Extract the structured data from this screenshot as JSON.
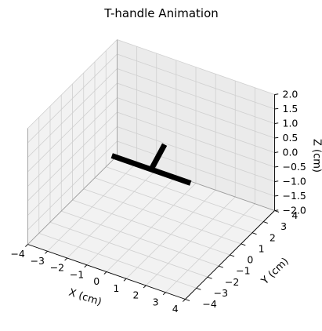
{
  "chart_data": {
    "type": "3d-line",
    "title": "T-handle Animation",
    "xlabel": "X (cm)",
    "ylabel": "Y (cm)",
    "zlabel": "Z (cm)",
    "xlim": [
      -4,
      4
    ],
    "ylim": [
      -4,
      4
    ],
    "zlim": [
      -2,
      2
    ],
    "x_ticks": [
      "−4",
      "−3",
      "−2",
      "−1",
      "0",
      "1",
      "2",
      "3",
      "4"
    ],
    "y_ticks": [
      "−4",
      "−3",
      "−2",
      "−1",
      "0",
      "1",
      "2",
      "3",
      "4"
    ],
    "z_ticks": [
      "−2.0",
      "−1.5",
      "−1.0",
      "−0.5",
      "0.0",
      "0.5",
      "1.0",
      "1.5",
      "2.0"
    ],
    "grid": true,
    "segments": [
      {
        "name": "handle bar",
        "from": [
          -2,
          0,
          0
        ],
        "to": [
          2,
          0,
          0
        ]
      },
      {
        "name": "shaft",
        "from": [
          0,
          0,
          0
        ],
        "to": [
          0,
          1.2,
          0.4
        ]
      }
    ],
    "line_color": "#000000"
  }
}
